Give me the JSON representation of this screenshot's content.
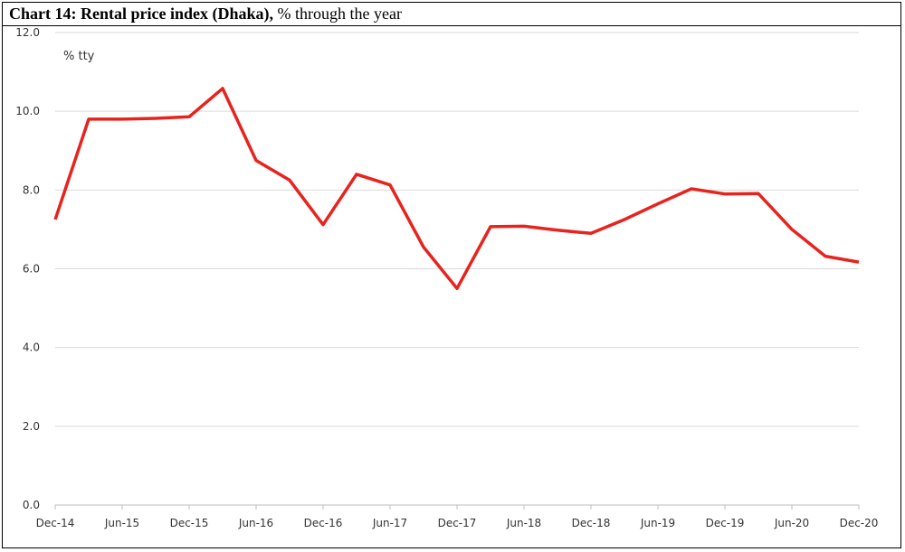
{
  "header": {
    "title_bold": "Chart 14: Rental price index (Dhaka),",
    "title_rest": "% through the year"
  },
  "chart_data": {
    "type": "line",
    "unit_label": "% tty",
    "xlabel": "",
    "ylabel": "",
    "ylim": [
      0,
      12
    ],
    "yticks": [
      "0.0",
      "2.0",
      "4.0",
      "6.0",
      "8.0",
      "10.0",
      "12.0"
    ],
    "grid": true,
    "legend": "none",
    "line_color": "#e8231d",
    "x_tick_labels": [
      "Dec-14",
      "Jun-15",
      "Dec-15",
      "Jun-16",
      "Dec-16",
      "Jun-17",
      "Dec-17",
      "Jun-18",
      "Dec-18",
      "Jun-19",
      "Dec-19",
      "Jun-20",
      "Dec-20"
    ],
    "series": [
      {
        "x": [
          "Dec-14",
          "Mar-15",
          "Jun-15",
          "Sep-15",
          "Dec-15",
          "Mar-16",
          "Jun-16",
          "Sep-16",
          "Dec-16",
          "Mar-17",
          "Jun-17",
          "Sep-17",
          "Dec-17",
          "Mar-18",
          "Jun-18",
          "Sep-18",
          "Dec-18",
          "Mar-19",
          "Jun-19",
          "Sep-19",
          "Dec-19",
          "Mar-20",
          "Jun-20",
          "Sep-20",
          "Dec-20"
        ],
        "values": [
          7.25,
          9.8,
          9.8,
          9.82,
          9.86,
          10.58,
          8.75,
          8.25,
          7.12,
          8.4,
          8.13,
          6.55,
          5.5,
          7.07,
          7.08,
          6.98,
          6.9,
          7.25,
          7.65,
          8.03,
          7.9,
          7.91,
          7.0,
          6.32,
          6.17
        ]
      }
    ]
  }
}
